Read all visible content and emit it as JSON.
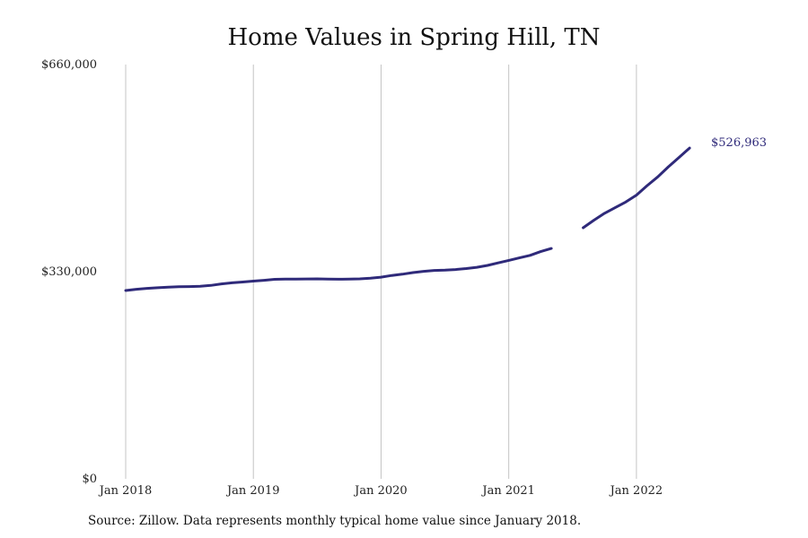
{
  "chart_data": {
    "type": "line",
    "title": "Home Values in Spring Hill, TN",
    "xlabel": "",
    "ylabel": "",
    "x_range": [
      "2018-01",
      "2022-07"
    ],
    "ylim": [
      0,
      660000
    ],
    "y_ticks": [
      {
        "value": 0,
        "label": "$0"
      },
      {
        "value": 330000,
        "label": "$330,000"
      },
      {
        "value": 660000,
        "label": "$660,000"
      }
    ],
    "x_ticks": [
      {
        "date": "2018-01",
        "label": "Jan 2018"
      },
      {
        "date": "2019-01",
        "label": "Jan 2019"
      },
      {
        "date": "2020-01",
        "label": "Jan 2020"
      },
      {
        "date": "2021-01",
        "label": "Jan 2021"
      },
      {
        "date": "2022-01",
        "label": "Jan 2022"
      }
    ],
    "grid": "vertical-at-x-ticks",
    "color": "#2f2a7a",
    "segments": [
      {
        "points": [
          [
            "2018-01",
            300000
          ],
          [
            "2018-02",
            302000
          ],
          [
            "2018-03",
            303500
          ],
          [
            "2018-04",
            304500
          ],
          [
            "2018-05",
            305300
          ],
          [
            "2018-06",
            306000
          ],
          [
            "2018-07",
            306300
          ],
          [
            "2018-08",
            306800
          ],
          [
            "2018-09",
            308200
          ],
          [
            "2018-10",
            310500
          ],
          [
            "2018-11",
            312300
          ],
          [
            "2018-12",
            313600
          ],
          [
            "2019-01",
            315000
          ],
          [
            "2019-02",
            316300
          ],
          [
            "2019-03",
            317800
          ],
          [
            "2019-04",
            318200
          ],
          [
            "2019-05",
            318300
          ],
          [
            "2019-06",
            318400
          ],
          [
            "2019-07",
            318500
          ],
          [
            "2019-08",
            318200
          ],
          [
            "2019-09",
            318000
          ],
          [
            "2019-10",
            318100
          ],
          [
            "2019-11",
            318500
          ],
          [
            "2019-12",
            319700
          ],
          [
            "2020-01",
            321300
          ],
          [
            "2020-02",
            324000
          ],
          [
            "2020-03",
            326000
          ],
          [
            "2020-04",
            328500
          ],
          [
            "2020-05",
            330500
          ],
          [
            "2020-06",
            332000
          ],
          [
            "2020-07",
            332500
          ],
          [
            "2020-08",
            333500
          ],
          [
            "2020-09",
            335000
          ],
          [
            "2020-10",
            337000
          ],
          [
            "2020-11",
            340000
          ],
          [
            "2020-12",
            344000
          ],
          [
            "2021-01",
            348000
          ],
          [
            "2021-02",
            352000
          ],
          [
            "2021-03",
            356000
          ],
          [
            "2021-04",
            362000
          ],
          [
            "2021-05",
            367000
          ]
        ]
      },
      {
        "points": [
          [
            "2021-08",
            400000
          ],
          [
            "2021-09",
            412000
          ],
          [
            "2021-10",
            423000
          ],
          [
            "2021-11",
            432000
          ],
          [
            "2021-12",
            441000
          ],
          [
            "2022-01",
            452000
          ],
          [
            "2022-02",
            467000
          ],
          [
            "2022-03",
            481000
          ],
          [
            "2022-04",
            497000
          ],
          [
            "2022-05",
            512000
          ],
          [
            "2022-06",
            526963
          ]
        ]
      }
    ],
    "end_label": "$526,963"
  },
  "footer": {
    "source": "Source: Zillow. Data represents monthly typical home value since January 2018."
  }
}
